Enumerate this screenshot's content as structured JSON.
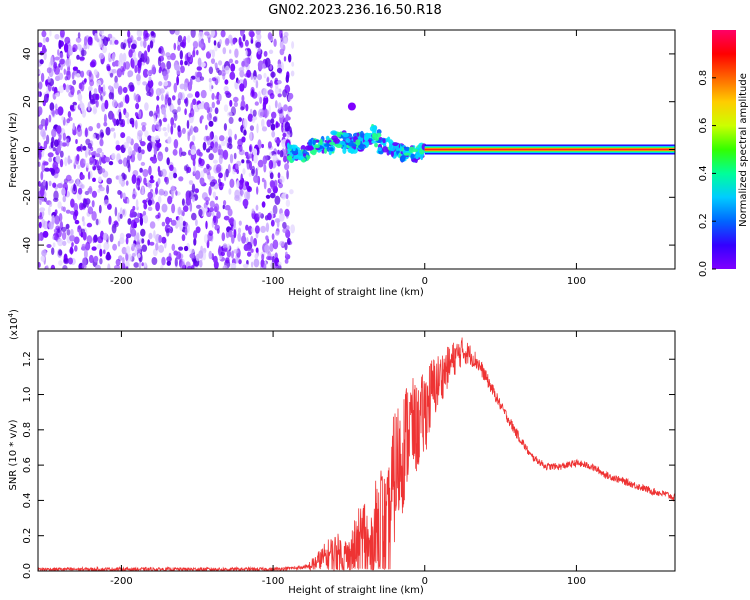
{
  "title": "GN02.2023.236.16.50.R18",
  "chart_data": [
    {
      "type": "heatmap",
      "xlabel": "Height of straight line (km)",
      "ylabel": "Frequency (Hz)",
      "xlim": [
        -255,
        165
      ],
      "ylim": [
        -50,
        50
      ],
      "x_ticks": [
        -200,
        -100,
        0,
        100
      ],
      "y_ticks": [
        -40,
        -20,
        0,
        20,
        40
      ],
      "colorbar": {
        "label": "Normalized spectral amplitude",
        "range": [
          0,
          1
        ],
        "ticks": [
          "0.0",
          "0.2",
          "0.4",
          "0.6",
          "0.8"
        ],
        "colormap": [
          "#7f00ff",
          "#3300ff",
          "#0066ff",
          "#00ccff",
          "#00ff99",
          "#33ff00",
          "#ccff00",
          "#ffcc00",
          "#ff6600",
          "#ff0000",
          "#ff0066"
        ]
      },
      "regions": [
        {
          "x": [
            -255,
            -90
          ],
          "y": [
            -50,
            50
          ],
          "amplitude": 0.05,
          "pattern": "scattered noise"
        },
        {
          "x": [
            -90,
            0
          ],
          "y": [
            -5,
            10
          ],
          "amplitude": 0.4,
          "pattern": "wavy band near 0 Hz"
        },
        {
          "x": [
            0,
            165
          ],
          "y": [
            -2,
            2
          ],
          "amplitude": 0.9,
          "pattern": "continuous strong band at 0 Hz"
        }
      ],
      "blob": {
        "x": -48,
        "y": 18,
        "amplitude": 0.05
      }
    },
    {
      "type": "line",
      "xlabel": "Height of straight line (km)",
      "ylabel": "SNR (10 * v/v)",
      "y_scale_label": "(x10",
      "y_scale_exp": "4",
      "y_scale_close": ")",
      "xlim": [
        -255,
        165
      ],
      "ylim": [
        0,
        1.36
      ],
      "x_ticks": [
        -200,
        -100,
        0,
        100
      ],
      "y_ticks": [
        "0.0",
        "0.2",
        "0.4",
        "0.6",
        "0.8",
        "1.0",
        "1.2"
      ],
      "series": [
        {
          "color": "#ee3333",
          "x": [
            -255,
            -200,
            -150,
            -100,
            -80,
            -70,
            -60,
            -50,
            -40,
            -35,
            -30,
            -25,
            -20,
            -15,
            -10,
            -5,
            0,
            5,
            10,
            15,
            20,
            25,
            30,
            35,
            40,
            50,
            60,
            70,
            80,
            90,
            100,
            110,
            120,
            130,
            140,
            150,
            160,
            165
          ],
          "values": [
            0.0,
            0.0,
            0.0,
            0.0,
            0.01,
            0.08,
            0.15,
            0.12,
            0.3,
            0.15,
            0.5,
            0.3,
            0.7,
            0.8,
            0.95,
            0.9,
            1.0,
            1.1,
            1.15,
            1.2,
            1.25,
            1.28,
            1.25,
            1.2,
            1.12,
            0.95,
            0.8,
            0.66,
            0.6,
            0.6,
            0.62,
            0.6,
            0.55,
            0.52,
            0.49,
            0.46,
            0.44,
            0.42
          ],
          "noise": [
            0,
            0,
            0,
            0,
            0.01,
            0.06,
            0.12,
            0.12,
            0.25,
            0.25,
            0.35,
            0.35,
            0.4,
            0.35,
            0.3,
            0.25,
            0.25,
            0.2,
            0.15,
            0.12,
            0.1,
            0.08,
            0.06,
            0.05,
            0.04,
            0.03,
            0.03,
            0.02,
            0.02,
            0.02,
            0.02,
            0.02,
            0.02,
            0.02,
            0.02,
            0.02,
            0.02,
            0.02
          ]
        }
      ]
    }
  ]
}
